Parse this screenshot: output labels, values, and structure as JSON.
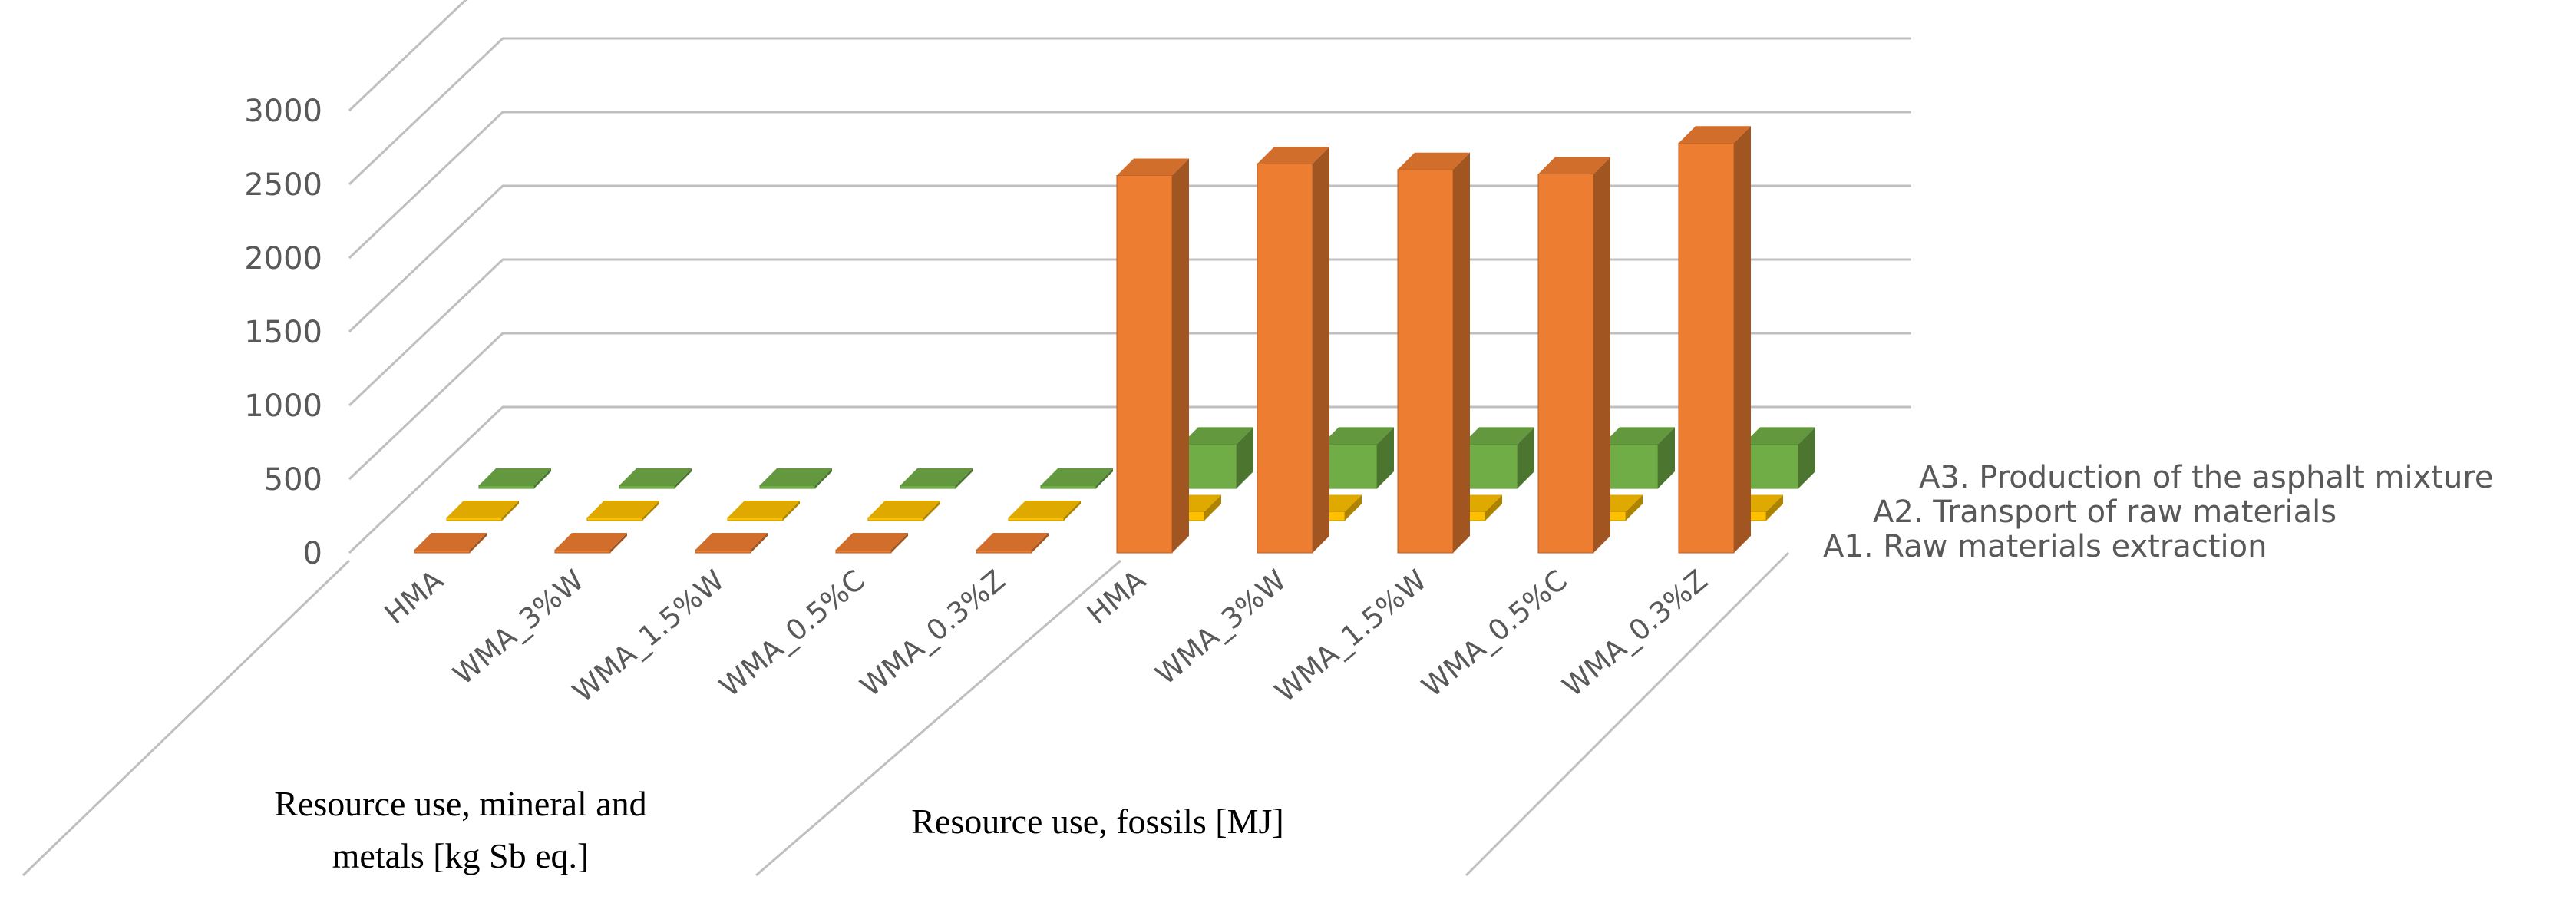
{
  "chart_data": {
    "type": "bar",
    "title": "",
    "xlabel": "",
    "ylabel": "",
    "ylim": [
      0,
      3000
    ],
    "yticks": [
      0,
      500,
      1000,
      1500,
      2000,
      2500,
      3000
    ],
    "grid": true,
    "groups": [
      {
        "label_line1": "Resource use, mineral and",
        "label_line2": "metals [kg Sb eq.]",
        "categories": [
          "HMA",
          "WMA_3%W",
          "WMA_1.5%W",
          "WMA_0.5%C",
          "WMA_0.3%Z"
        ]
      },
      {
        "label_line1": "Resource use, fossils [MJ]",
        "categories": [
          "HMA",
          "WMA_3%W",
          "WMA_1.5%W",
          "WMA_0.5%C",
          "WMA_0.3%Z"
        ]
      }
    ],
    "series": [
      {
        "name": "A1. Raw materials extraction",
        "color": "#ED7D31",
        "values": [
          0,
          0,
          0,
          0,
          0,
          2560,
          2640,
          2600,
          2570,
          2780
        ]
      },
      {
        "name": "A2. Transport of raw materials",
        "color": "#FFC000",
        "values": [
          0,
          0,
          0,
          0,
          0,
          60,
          60,
          60,
          60,
          60
        ]
      },
      {
        "name": "A3. Production of the asphalt mixture",
        "color": "#70AD47",
        "values": [
          0,
          0,
          0,
          0,
          0,
          300,
          300,
          300,
          300,
          300
        ]
      }
    ]
  }
}
